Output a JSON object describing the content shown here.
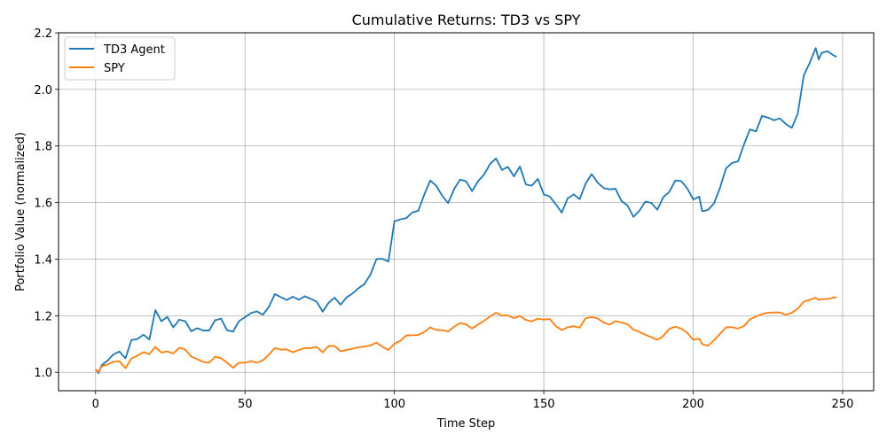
{
  "chart_data": {
    "type": "line",
    "title": "Cumulative Returns: TD3 vs SPY",
    "xlabel": "Time Step",
    "ylabel": "Portfolio Value (normalized)",
    "xlim": [
      -12.4,
      260.4
    ],
    "ylim": [
      0.935,
      2.2
    ],
    "xticks": [
      0,
      50,
      100,
      150,
      200,
      250
    ],
    "yticks": [
      1.0,
      1.2,
      1.4,
      1.6,
      1.8,
      2.0,
      2.2
    ],
    "xtick_labels": [
      "0",
      "50",
      "100",
      "150",
      "200",
      "250"
    ],
    "ytick_labels": [
      "1.0",
      "1.2",
      "1.4",
      "1.6",
      "1.8",
      "2.0",
      "2.2"
    ],
    "grid": true,
    "legend": "upper-left",
    "series": [
      {
        "name": "TD3 Agent",
        "color": "#1f77b4",
        "keypoints": [
          [
            0,
            1.01
          ],
          [
            1,
            0.995
          ],
          [
            2,
            1.02
          ],
          [
            4,
            1.035
          ],
          [
            6,
            1.06
          ],
          [
            8,
            1.075
          ],
          [
            10,
            1.055
          ],
          [
            12,
            1.12
          ],
          [
            14,
            1.12
          ],
          [
            16,
            1.13
          ],
          [
            18,
            1.11
          ],
          [
            20,
            1.215
          ],
          [
            22,
            1.18
          ],
          [
            24,
            1.2
          ],
          [
            26,
            1.165
          ],
          [
            28,
            1.19
          ],
          [
            30,
            1.18
          ],
          [
            32,
            1.14
          ],
          [
            34,
            1.15
          ],
          [
            36,
            1.145
          ],
          [
            38,
            1.15
          ],
          [
            40,
            1.19
          ],
          [
            42,
            1.195
          ],
          [
            44,
            1.15
          ],
          [
            46,
            1.14
          ],
          [
            48,
            1.175
          ],
          [
            50,
            1.19
          ],
          [
            52,
            1.21
          ],
          [
            54,
            1.22
          ],
          [
            56,
            1.21
          ],
          [
            58,
            1.235
          ],
          [
            60,
            1.275
          ],
          [
            62,
            1.26
          ],
          [
            64,
            1.25
          ],
          [
            66,
            1.265
          ],
          [
            68,
            1.26
          ],
          [
            70,
            1.275
          ],
          [
            72,
            1.265
          ],
          [
            74,
            1.25
          ],
          [
            76,
            1.21
          ],
          [
            78,
            1.24
          ],
          [
            80,
            1.26
          ],
          [
            82,
            1.24
          ],
          [
            84,
            1.27
          ],
          [
            86,
            1.285
          ],
          [
            88,
            1.3
          ],
          [
            90,
            1.31
          ],
          [
            92,
            1.34
          ],
          [
            94,
            1.395
          ],
          [
            96,
            1.4
          ],
          [
            98,
            1.395
          ],
          [
            100,
            1.54
          ],
          [
            102,
            1.545
          ],
          [
            104,
            1.545
          ],
          [
            106,
            1.56
          ],
          [
            108,
            1.565
          ],
          [
            110,
            1.625
          ],
          [
            112,
            1.68
          ],
          [
            114,
            1.665
          ],
          [
            116,
            1.63
          ],
          [
            118,
            1.6
          ],
          [
            120,
            1.645
          ],
          [
            122,
            1.675
          ],
          [
            124,
            1.67
          ],
          [
            126,
            1.64
          ],
          [
            128,
            1.68
          ],
          [
            130,
            1.705
          ],
          [
            132,
            1.74
          ],
          [
            134,
            1.755
          ],
          [
            136,
            1.71
          ],
          [
            138,
            1.72
          ],
          [
            140,
            1.69
          ],
          [
            142,
            1.73
          ],
          [
            144,
            1.67
          ],
          [
            146,
            1.665
          ],
          [
            148,
            1.685
          ],
          [
            150,
            1.625
          ],
          [
            152,
            1.615
          ],
          [
            154,
            1.59
          ],
          [
            156,
            1.565
          ],
          [
            158,
            1.62
          ],
          [
            160,
            1.635
          ],
          [
            162,
            1.615
          ],
          [
            164,
            1.665
          ],
          [
            166,
            1.695
          ],
          [
            168,
            1.665
          ],
          [
            170,
            1.65
          ],
          [
            172,
            1.65
          ],
          [
            174,
            1.655
          ],
          [
            176,
            1.61
          ],
          [
            178,
            1.59
          ],
          [
            180,
            1.545
          ],
          [
            182,
            1.565
          ],
          [
            184,
            1.6
          ],
          [
            186,
            1.6
          ],
          [
            188,
            1.58
          ],
          [
            190,
            1.625
          ],
          [
            192,
            1.64
          ],
          [
            194,
            1.675
          ],
          [
            196,
            1.67
          ],
          [
            198,
            1.645
          ],
          [
            200,
            1.61
          ],
          [
            202,
            1.625
          ],
          [
            203,
            1.575
          ],
          [
            205,
            1.58
          ],
          [
            207,
            1.6
          ],
          [
            209,
            1.65
          ],
          [
            211,
            1.715
          ],
          [
            213,
            1.735
          ],
          [
            215,
            1.745
          ],
          [
            217,
            1.81
          ],
          [
            219,
            1.865
          ],
          [
            221,
            1.855
          ],
          [
            223,
            1.905
          ],
          [
            225,
            1.895
          ],
          [
            227,
            1.885
          ],
          [
            229,
            1.895
          ],
          [
            231,
            1.88
          ],
          [
            233,
            1.87
          ],
          [
            235,
            1.92
          ],
          [
            237,
            2.05
          ],
          [
            239,
            2.09
          ],
          [
            241,
            2.14
          ],
          [
            242,
            2.1
          ],
          [
            243,
            2.125
          ],
          [
            245,
            2.135
          ],
          [
            247,
            2.125
          ],
          [
            248,
            2.115
          ]
        ]
      },
      {
        "name": "SPY",
        "color": "#ff7f0e",
        "keypoints": [
          [
            0,
            1.01
          ],
          [
            1,
            0.995
          ],
          [
            2,
            1.015
          ],
          [
            4,
            1.025
          ],
          [
            6,
            1.04
          ],
          [
            8,
            1.045
          ],
          [
            10,
            1.02
          ],
          [
            12,
            1.05
          ],
          [
            14,
            1.055
          ],
          [
            16,
            1.065
          ],
          [
            18,
            1.06
          ],
          [
            20,
            1.09
          ],
          [
            22,
            1.075
          ],
          [
            24,
            1.08
          ],
          [
            26,
            1.07
          ],
          [
            28,
            1.085
          ],
          [
            30,
            1.075
          ],
          [
            32,
            1.05
          ],
          [
            34,
            1.045
          ],
          [
            36,
            1.04
          ],
          [
            38,
            1.04
          ],
          [
            40,
            1.06
          ],
          [
            42,
            1.05
          ],
          [
            44,
            1.03
          ],
          [
            46,
            1.01
          ],
          [
            48,
            1.03
          ],
          [
            50,
            1.035
          ],
          [
            52,
            1.045
          ],
          [
            54,
            1.04
          ],
          [
            56,
            1.045
          ],
          [
            58,
            1.06
          ],
          [
            60,
            1.08
          ],
          [
            62,
            1.075
          ],
          [
            64,
            1.08
          ],
          [
            66,
            1.075
          ],
          [
            68,
            1.085
          ],
          [
            70,
            1.09
          ],
          [
            72,
            1.085
          ],
          [
            74,
            1.085
          ],
          [
            76,
            1.065
          ],
          [
            78,
            1.09
          ],
          [
            80,
            1.095
          ],
          [
            82,
            1.08
          ],
          [
            84,
            1.085
          ],
          [
            86,
            1.085
          ],
          [
            88,
            1.085
          ],
          [
            90,
            1.085
          ],
          [
            92,
            1.09
          ],
          [
            94,
            1.105
          ],
          [
            96,
            1.095
          ],
          [
            98,
            1.085
          ],
          [
            100,
            1.105
          ],
          [
            102,
            1.11
          ],
          [
            104,
            1.125
          ],
          [
            106,
            1.125
          ],
          [
            108,
            1.13
          ],
          [
            110,
            1.145
          ],
          [
            112,
            1.165
          ],
          [
            114,
            1.155
          ],
          [
            116,
            1.15
          ],
          [
            118,
            1.14
          ],
          [
            120,
            1.155
          ],
          [
            122,
            1.17
          ],
          [
            124,
            1.17
          ],
          [
            126,
            1.16
          ],
          [
            128,
            1.175
          ],
          [
            130,
            1.185
          ],
          [
            132,
            1.195
          ],
          [
            134,
            1.205
          ],
          [
            136,
            1.195
          ],
          [
            138,
            1.2
          ],
          [
            140,
            1.195
          ],
          [
            142,
            1.205
          ],
          [
            144,
            1.19
          ],
          [
            146,
            1.18
          ],
          [
            148,
            1.185
          ],
          [
            150,
            1.18
          ],
          [
            152,
            1.185
          ],
          [
            154,
            1.165
          ],
          [
            156,
            1.155
          ],
          [
            158,
            1.165
          ],
          [
            160,
            1.165
          ],
          [
            162,
            1.155
          ],
          [
            164,
            1.185
          ],
          [
            166,
            1.19
          ],
          [
            168,
            1.19
          ],
          [
            170,
            1.18
          ],
          [
            172,
            1.175
          ],
          [
            174,
            1.185
          ],
          [
            176,
            1.175
          ],
          [
            178,
            1.165
          ],
          [
            180,
            1.145
          ],
          [
            182,
            1.14
          ],
          [
            184,
            1.135
          ],
          [
            186,
            1.13
          ],
          [
            188,
            1.12
          ],
          [
            190,
            1.13
          ],
          [
            192,
            1.15
          ],
          [
            194,
            1.155
          ],
          [
            196,
            1.15
          ],
          [
            198,
            1.14
          ],
          [
            200,
            1.12
          ],
          [
            202,
            1.125
          ],
          [
            203,
            1.105
          ],
          [
            205,
            1.095
          ],
          [
            207,
            1.11
          ],
          [
            209,
            1.13
          ],
          [
            211,
            1.155
          ],
          [
            213,
            1.16
          ],
          [
            215,
            1.16
          ],
          [
            217,
            1.17
          ],
          [
            219,
            1.19
          ],
          [
            221,
            1.195
          ],
          [
            223,
            1.2
          ],
          [
            225,
            1.205
          ],
          [
            227,
            1.21
          ],
          [
            229,
            1.215
          ],
          [
            231,
            1.21
          ],
          [
            233,
            1.215
          ],
          [
            235,
            1.225
          ],
          [
            237,
            1.245
          ],
          [
            239,
            1.25
          ],
          [
            241,
            1.26
          ],
          [
            242,
            1.255
          ],
          [
            243,
            1.26
          ],
          [
            245,
            1.265
          ],
          [
            247,
            1.27
          ],
          [
            248,
            1.265
          ]
        ]
      }
    ]
  }
}
